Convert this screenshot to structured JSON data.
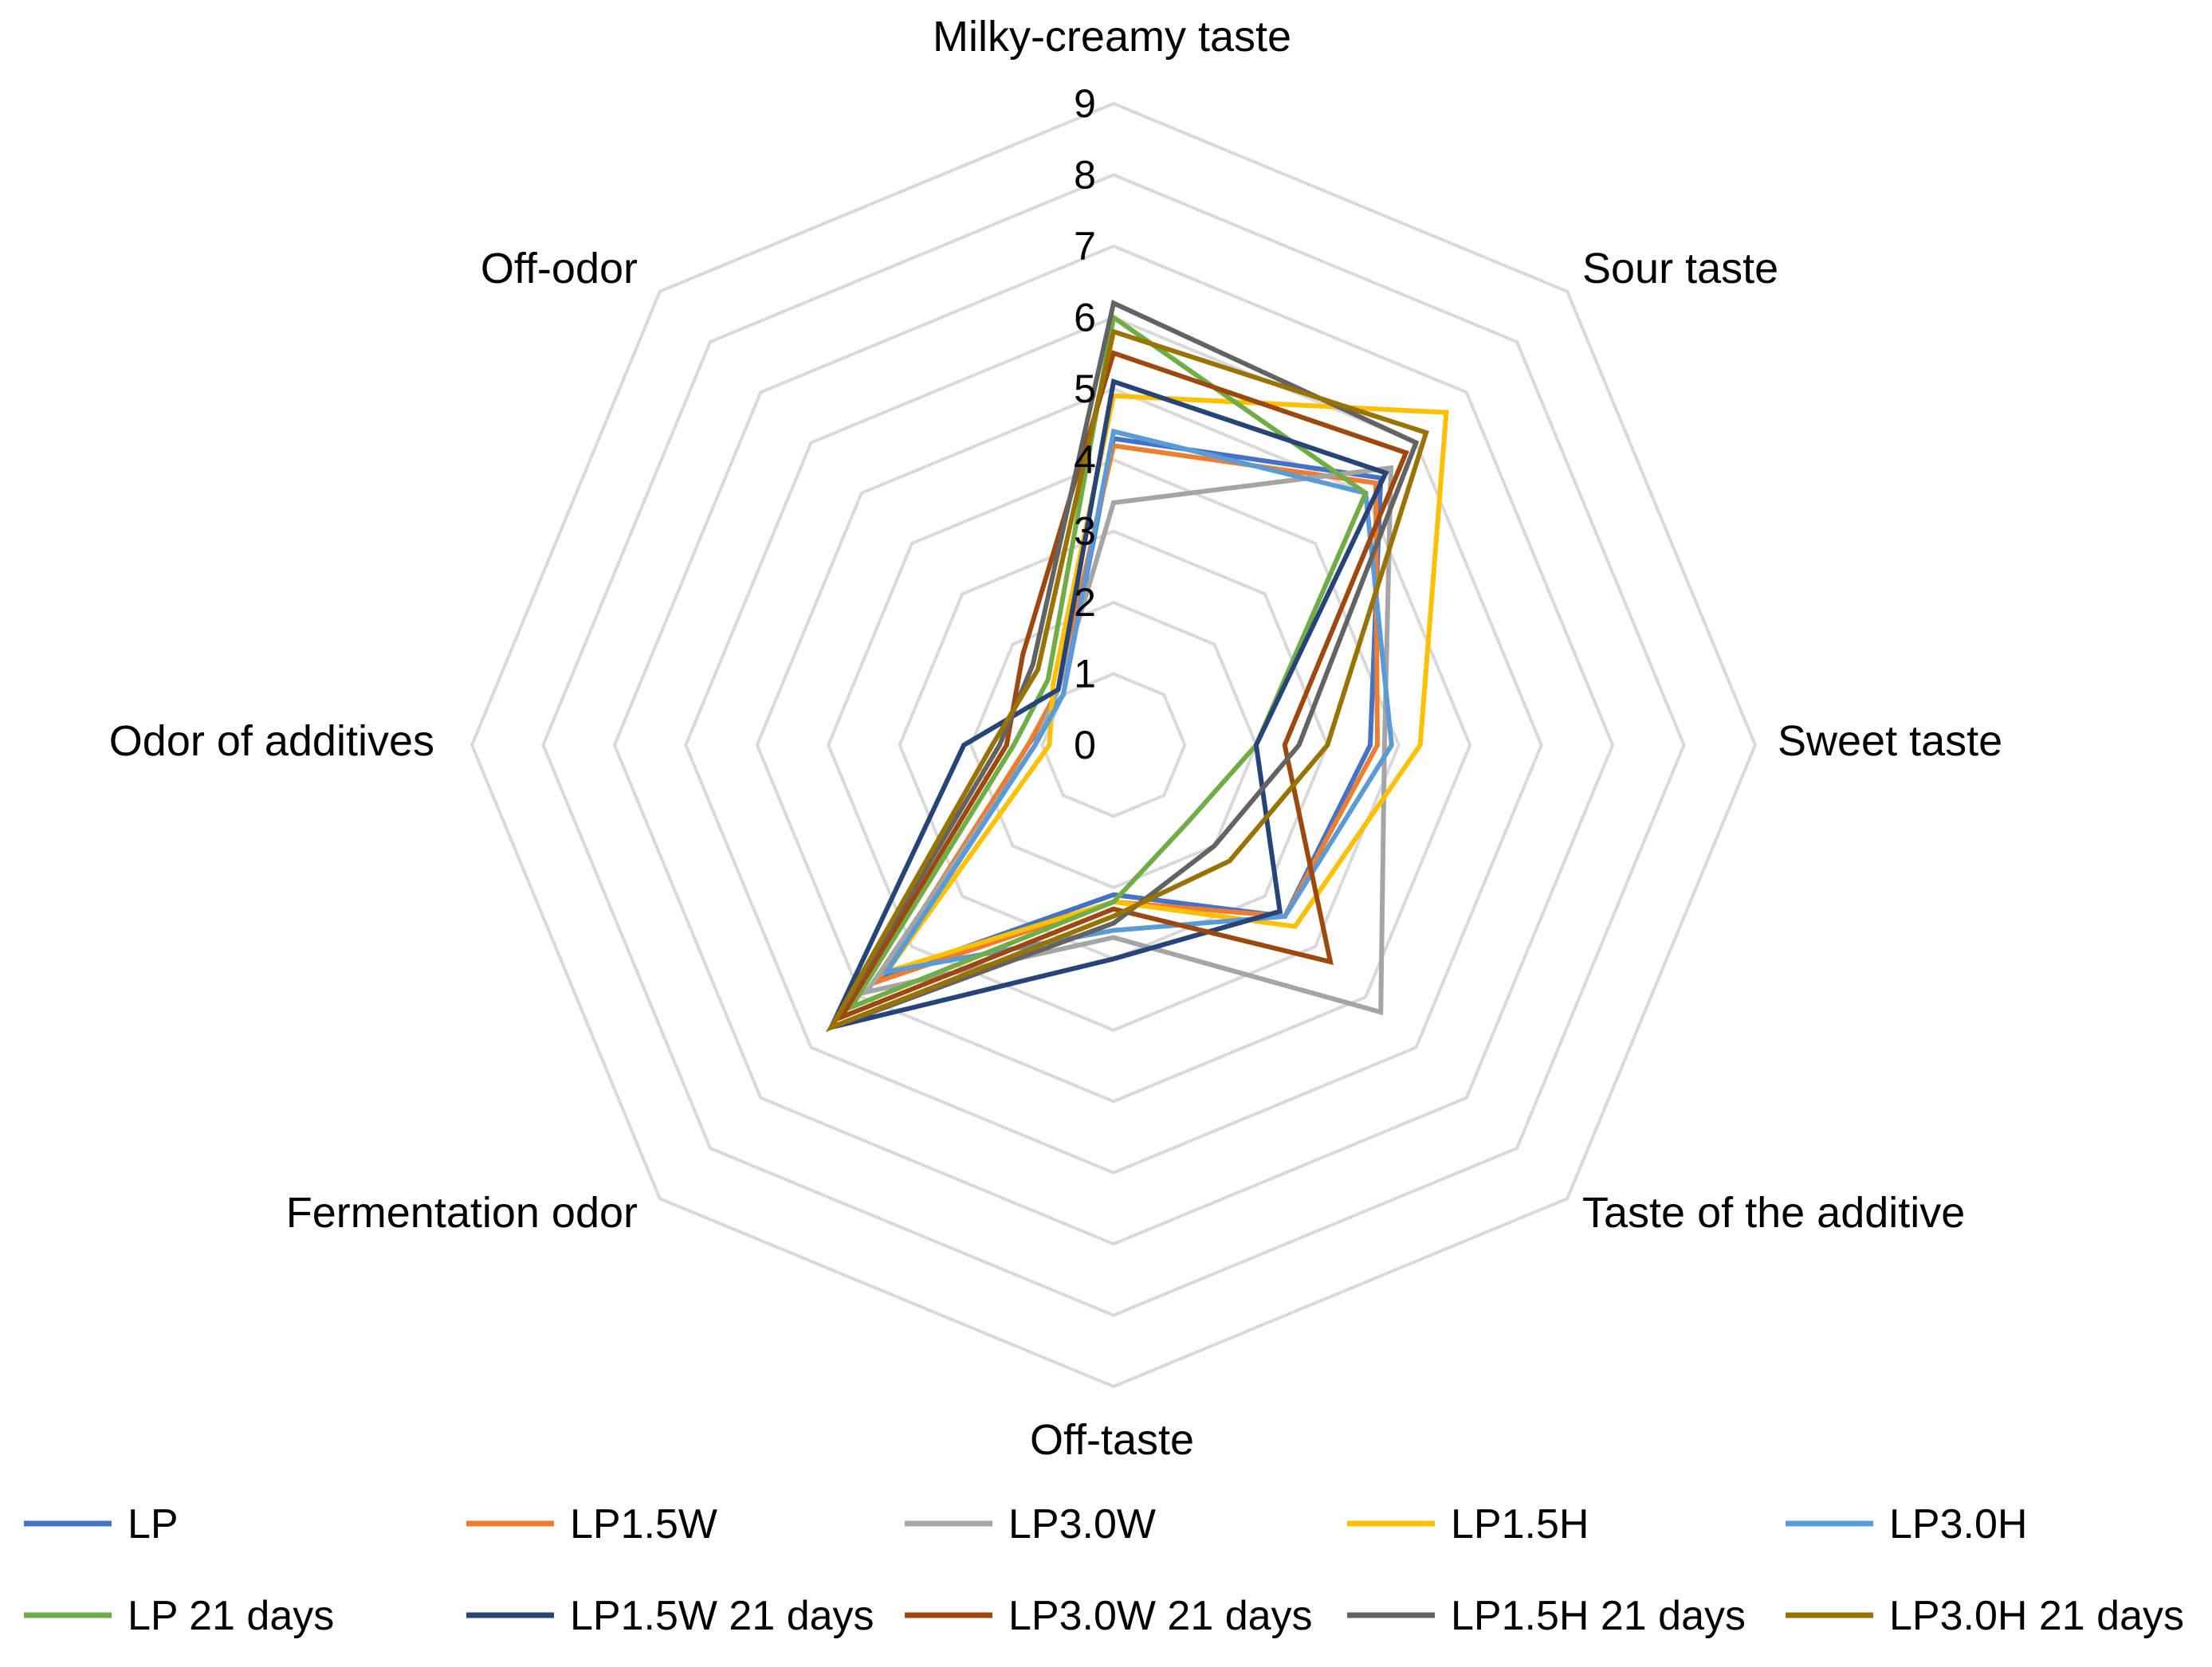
{
  "chart_data": {
    "type": "radar",
    "title": "",
    "axes": [
      "Milky-creamy taste",
      "Sour taste",
      "Sweet taste",
      "Taste of the additive",
      "Off-taste",
      "Fermentation odor",
      "Odor of additives",
      "Off-odor"
    ],
    "rlim": [
      0,
      9
    ],
    "ticks": [
      "0",
      "1",
      "2",
      "3",
      "4",
      "5",
      "6",
      "7",
      "8",
      "9"
    ],
    "grid": true,
    "legend_position": "bottom",
    "series": [
      {
        "name": "LP",
        "color": "#4472C4",
        "values": [
          4.3,
          5.3,
          3.6,
          3.4,
          2.1,
          4.6,
          1.2,
          1.0
        ]
      },
      {
        "name": "LP1.5W",
        "color": "#ED7D31",
        "values": [
          4.2,
          5.2,
          3.7,
          3.4,
          2.2,
          4.7,
          1.2,
          1.1
        ]
      },
      {
        "name": "LP3.0W",
        "color": "#A5A5A5",
        "values": [
          3.4,
          5.5,
          3.8,
          5.3,
          2.7,
          4.9,
          1.1,
          1.1
        ]
      },
      {
        "name": "LP1.5H",
        "color": "#FFC000",
        "values": [
          4.9,
          6.6,
          4.3,
          3.6,
          2.2,
          4.5,
          0.9,
          1.2
        ]
      },
      {
        "name": "LP3.0H",
        "color": "#5B9BD5",
        "values": [
          4.4,
          5.0,
          3.9,
          3.4,
          2.6,
          4.5,
          1.1,
          1.0
        ]
      },
      {
        "name": "LP 21 days",
        "color": "#70AD47",
        "values": [
          6.0,
          5.0,
          2.0,
          1.5,
          2.2,
          5.2,
          1.4,
          1.3
        ]
      },
      {
        "name": "LP1.5W 21 days",
        "color": "#264478",
        "values": [
          5.1,
          5.4,
          2.0,
          3.3,
          3.0,
          5.6,
          2.1,
          1.1
        ]
      },
      {
        "name": "LP3.0W 21 days",
        "color": "#9E480E",
        "values": [
          5.5,
          5.8,
          2.4,
          4.3,
          2.3,
          5.4,
          1.5,
          1.8
        ]
      },
      {
        "name": "LP1.5H 21 days",
        "color": "#636363",
        "values": [
          6.2,
          6.0,
          2.6,
          2.0,
          2.5,
          5.6,
          1.6,
          1.6
        ]
      },
      {
        "name": "LP3.0H 21 days",
        "color": "#997300",
        "values": [
          5.8,
          6.2,
          3.0,
          2.3,
          2.4,
          5.6,
          1.7,
          1.5
        ]
      }
    ]
  }
}
